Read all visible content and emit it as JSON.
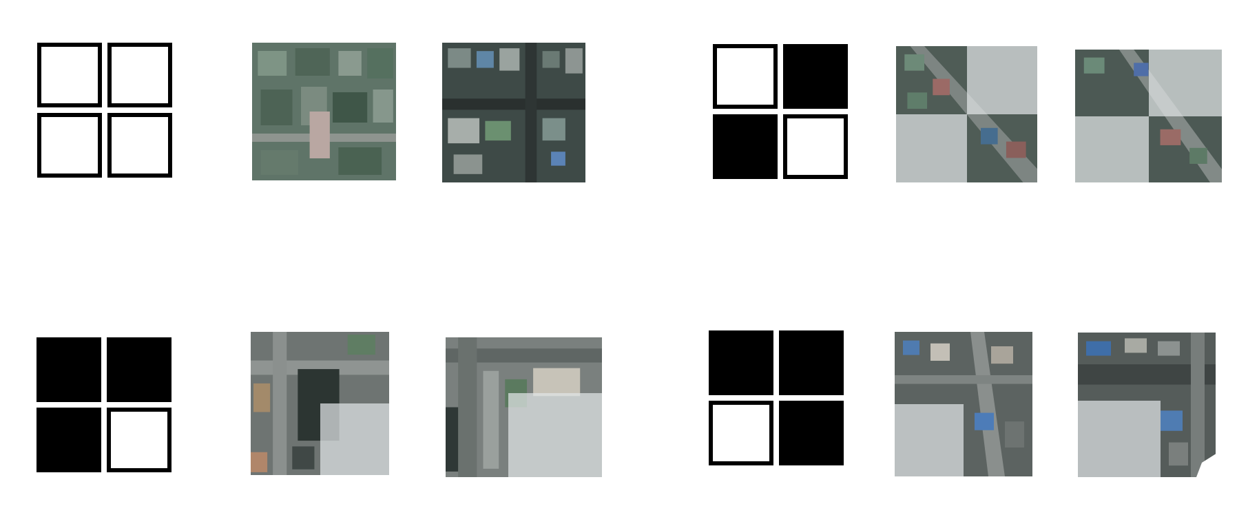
{
  "colors": {
    "mask_filled": "#000000",
    "mask_open": "#ffffff",
    "masked_region_overlay": "#e1e5e6"
  },
  "rows": [
    {
      "groups": [
        {
          "mask": [
            "open",
            "open",
            "open",
            "open"
          ],
          "tiles": [
            {
              "masked": []
            },
            {
              "masked": []
            }
          ]
        },
        {
          "mask": [
            "open",
            "filled",
            "filled",
            "open"
          ],
          "tiles": [
            {
              "masked": [
                1,
                2
              ]
            },
            {
              "masked": [
                1,
                2
              ]
            }
          ]
        }
      ]
    },
    {
      "groups": [
        {
          "mask": [
            "filled",
            "filled",
            "filled",
            "open"
          ],
          "tiles": [
            {
              "masked": [
                3
              ]
            },
            {
              "masked": [
                3
              ]
            }
          ]
        },
        {
          "mask": [
            "filled",
            "filled",
            "open",
            "filled"
          ],
          "tiles": [
            {
              "masked": [
                2
              ]
            },
            {
              "masked": [
                2
              ]
            }
          ]
        }
      ]
    }
  ]
}
